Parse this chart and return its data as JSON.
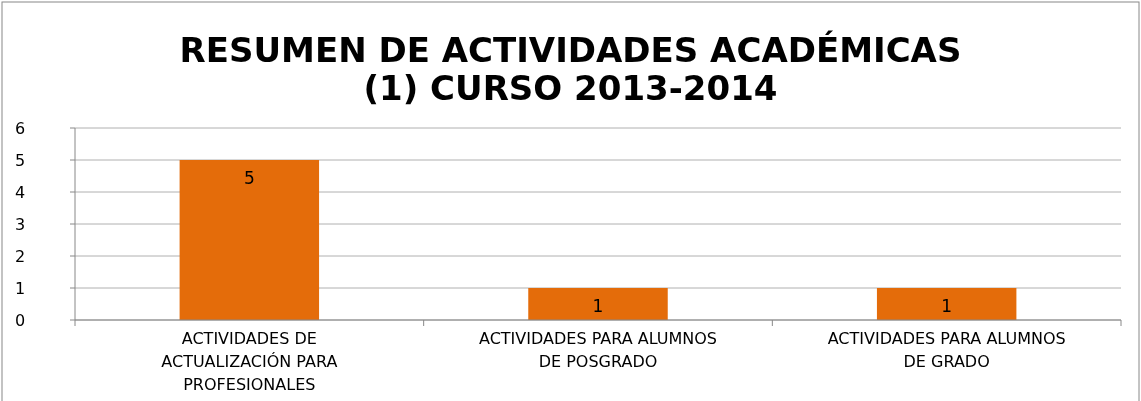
{
  "chart_data": {
    "type": "bar",
    "title": "RESUMEN DE ACTIVIDADES ACADÉMICAS (1) CURSO 2013-2014",
    "categories": [
      "ACTIVIDADES DE ACTUALIZACIÓN PARA PROFESIONALES",
      "ACTIVIDADES PARA ALUMNOS DE POSGRADO",
      "ACTIVIDADES PARA ALUMNOS DE GRADO"
    ],
    "values": [
      5,
      1,
      1
    ],
    "color": "#e46c0a",
    "ylim": [
      0,
      6
    ],
    "yticks": [
      0,
      1,
      2,
      3,
      4,
      5,
      6
    ],
    "grid": "y",
    "data_labels": true
  }
}
